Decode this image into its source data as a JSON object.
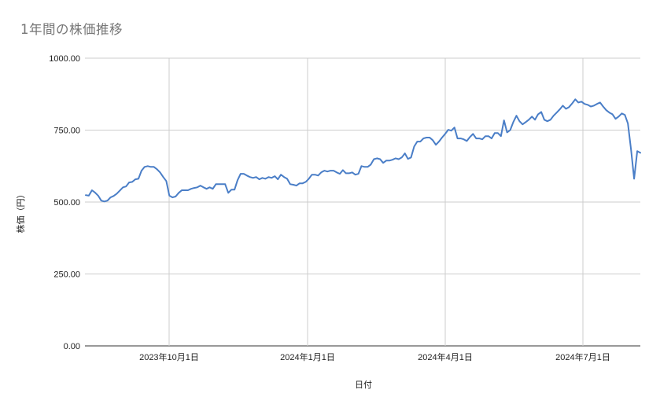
{
  "chart_data": {
    "type": "line",
    "title": "1年間の株価推移",
    "xlabel": "日付",
    "ylabel": "株価（円）",
    "ylim": [
      0,
      1000
    ],
    "y_ticks": [
      "0.00",
      "250.00",
      "500.00",
      "750.00",
      "1000.00"
    ],
    "x_ticks": [
      "2023年10月1日",
      "2024年1月1日",
      "2024年4月1日",
      "2024年7月1日"
    ],
    "grid": true,
    "legend": "none",
    "series": [
      {
        "name": "株価",
        "color": "#4a7ec7",
        "approx_x_dates_note": "x spans approx 2023-08 to 2024-08",
        "values": [
          524,
          522,
          541,
          533,
          522,
          505,
          502,
          505,
          516,
          521,
          529,
          540,
          551,
          554,
          568,
          570,
          579,
          581,
          609,
          622,
          625,
          622,
          622,
          614,
          603,
          587,
          573,
          522,
          516,
          519,
          532,
          541,
          541,
          541,
          546,
          549,
          551,
          557,
          551,
          546,
          551,
          546,
          562,
          562,
          562,
          562,
          532,
          543,
          543,
          576,
          598,
          598,
          592,
          587,
          584,
          587,
          579,
          584,
          581,
          587,
          584,
          590,
          579,
          595,
          587,
          581,
          562,
          560,
          557,
          565,
          565,
          570,
          581,
          595,
          595,
          592,
          603,
          609,
          606,
          609,
          609,
          603,
          598,
          611,
          600,
          600,
          603,
          595,
          598,
          625,
          622,
          622,
          630,
          649,
          652,
          649,
          636,
          644,
          644,
          647,
          652,
          649,
          655,
          669,
          650,
          655,
          693,
          710,
          710,
          721,
          724,
          724,
          715,
          699,
          710,
          724,
          737,
          751,
          748,
          759,
          721,
          721,
          718,
          712,
          726,
          737,
          721,
          721,
          718,
          729,
          729,
          721,
          740,
          740,
          729,
          784,
          742,
          750,
          778,
          800,
          781,
          770,
          778,
          786,
          797,
          786,
          805,
          813,
          786,
          781,
          786,
          800,
          811,
          822,
          835,
          824,
          830,
          843,
          857,
          846,
          849,
          841,
          838,
          832,
          835,
          841,
          846,
          832,
          819,
          811,
          805,
          789,
          797,
          808,
          803,
          773,
          682,
          581,
          677,
          671
        ]
      }
    ]
  }
}
